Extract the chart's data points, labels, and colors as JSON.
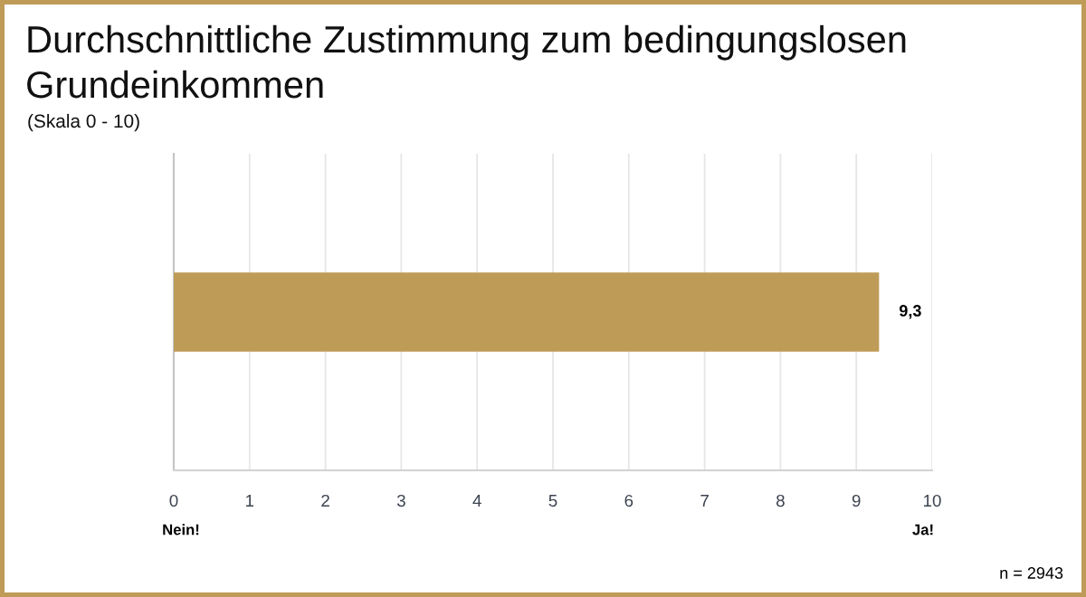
{
  "chart_data": {
    "type": "bar",
    "orientation": "horizontal",
    "title": "Durchschnittliche Zustimmung zum bedingungslosen Grundeinkommen",
    "subtitle": "(Skala 0 - 10)",
    "categories": [
      null
    ],
    "values": [
      9.3
    ],
    "color": "#bf9b58",
    "value_labels": [
      "9,3"
    ],
    "xlim": [
      0,
      10
    ],
    "xticks": [
      0,
      1,
      2,
      3,
      4,
      5,
      6,
      7,
      8,
      9,
      10
    ],
    "grid": "x",
    "tick_labels": "x",
    "annotations": [
      "Nein!",
      "Ja!",
      "n = 2943"
    ]
  }
}
